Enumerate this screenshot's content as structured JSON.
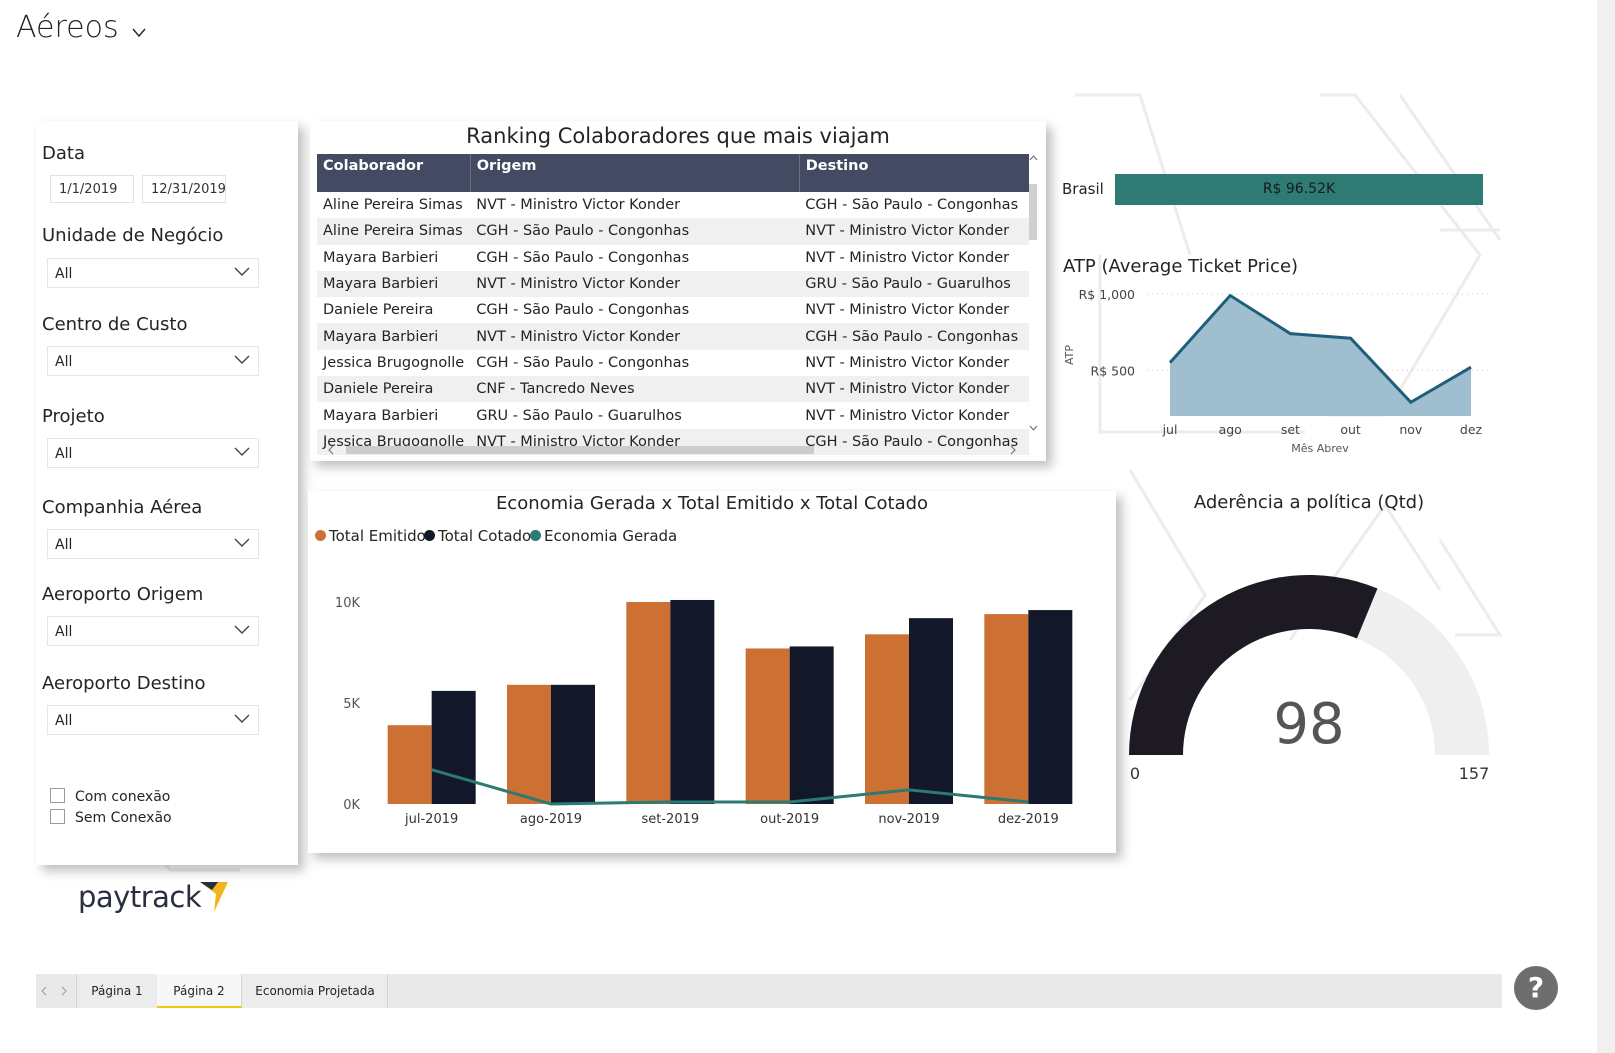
{
  "header": {
    "title": "Aéreos"
  },
  "filters": {
    "date_label": "Data",
    "date_start": "1/1/2019",
    "date_end": "12/31/2019",
    "dropdowns": [
      {
        "label": "Unidade de Negócio",
        "value": "All"
      },
      {
        "label": "Centro de Custo",
        "value": "All"
      },
      {
        "label": "Projeto",
        "value": "All"
      },
      {
        "label": "Companhia Aérea",
        "value": "All"
      },
      {
        "label": "Aeroporto Origem",
        "value": "All"
      },
      {
        "label": "Aeroporto Destino",
        "value": "All"
      }
    ],
    "checkboxes": [
      "Com conexão",
      "Sem Conexão"
    ]
  },
  "logo": {
    "text": "paytrack"
  },
  "ranking": {
    "title": "Ranking Colaboradores que mais viajam",
    "columns": [
      "Colaborador",
      "Origem",
      "Destino"
    ],
    "rows": [
      [
        "Aline Pereira Simas",
        "NVT - Ministro Victor Konder",
        "CGH - São Paulo - Congonhas"
      ],
      [
        "Aline Pereira Simas",
        "CGH - São Paulo - Congonhas",
        "NVT - Ministro Victor Konder"
      ],
      [
        "Mayara Barbieri",
        "CGH - São Paulo - Congonhas",
        "NVT - Ministro Victor Konder"
      ],
      [
        "Mayara Barbieri",
        "NVT - Ministro Victor Konder",
        "GRU - São Paulo - Guarulhos"
      ],
      [
        "Daniele Pereira",
        "CGH - São Paulo - Congonhas",
        "NVT - Ministro Victor Konder"
      ],
      [
        "Mayara Barbieri",
        "NVT - Ministro Victor Konder",
        "CGH - São Paulo - Congonhas"
      ],
      [
        "Jessica Brugognolle",
        "CGH - São Paulo - Congonhas",
        "NVT - Ministro Victor Konder"
      ],
      [
        "Daniele Pereira",
        "CNF - Tancredo Neves",
        "NVT - Ministro Victor Konder"
      ],
      [
        "Mayara Barbieri",
        "GRU - São Paulo - Guarulhos",
        "NVT - Ministro Victor Konder"
      ],
      [
        "Jessica Brugognolle",
        "NVT - Ministro Victor Konder",
        "CGH - São Paulo - Congonhas"
      ]
    ]
  },
  "brasil": {
    "label": "Brasil",
    "value": "R$ 96.52K"
  },
  "chart_data": [
    {
      "type": "bar",
      "title": "Economia Gerada x Total Emitido x Total Cotado",
      "categories": [
        "jul-2019",
        "ago-2019",
        "set-2019",
        "out-2019",
        "nov-2019",
        "dez-2019"
      ],
      "series": [
        {
          "name": "Total Emitido",
          "kind": "bar",
          "color": "#cd7033",
          "values": [
            3900,
            5900,
            10000,
            7700,
            8400,
            9400
          ]
        },
        {
          "name": "Total Cotado",
          "kind": "bar",
          "color": "#12172a",
          "values": [
            5600,
            5900,
            10100,
            7800,
            9200,
            9600
          ]
        },
        {
          "name": "Economia Gerada",
          "kind": "line",
          "color": "#2b7a73",
          "values": [
            1700,
            0,
            100,
            100,
            700,
            100
          ]
        }
      ],
      "yticks": [
        "0K",
        "5K",
        "10K"
      ],
      "ylim": [
        0,
        10000
      ]
    },
    {
      "type": "area",
      "title": "ATP (Average Ticket Price)",
      "xlabel": "Mês Abrev",
      "ylabel": "ATP",
      "x": [
        "jul",
        "ago",
        "set",
        "out",
        "nov",
        "dez"
      ],
      "values": [
        550,
        990,
        740,
        710,
        290,
        520
      ],
      "yticks": [
        "R$ 500",
        "R$ 1,000"
      ],
      "ylim": [
        200,
        1000
      ],
      "color": "#1f5f7a",
      "fill": "#9fbfd1"
    }
  ],
  "gauge": {
    "title": "Aderência a política (Qtd)",
    "value": 98,
    "min": 0,
    "max": 157,
    "value_label": "98",
    "min_label": "0",
    "max_label": "157",
    "fill_color": "#1e1a24",
    "track_color": "#efefef"
  },
  "tabs": [
    "Página 1",
    "Página 2",
    "Economia Projetada"
  ],
  "active_tab": "Página 2",
  "help_icon": "?"
}
